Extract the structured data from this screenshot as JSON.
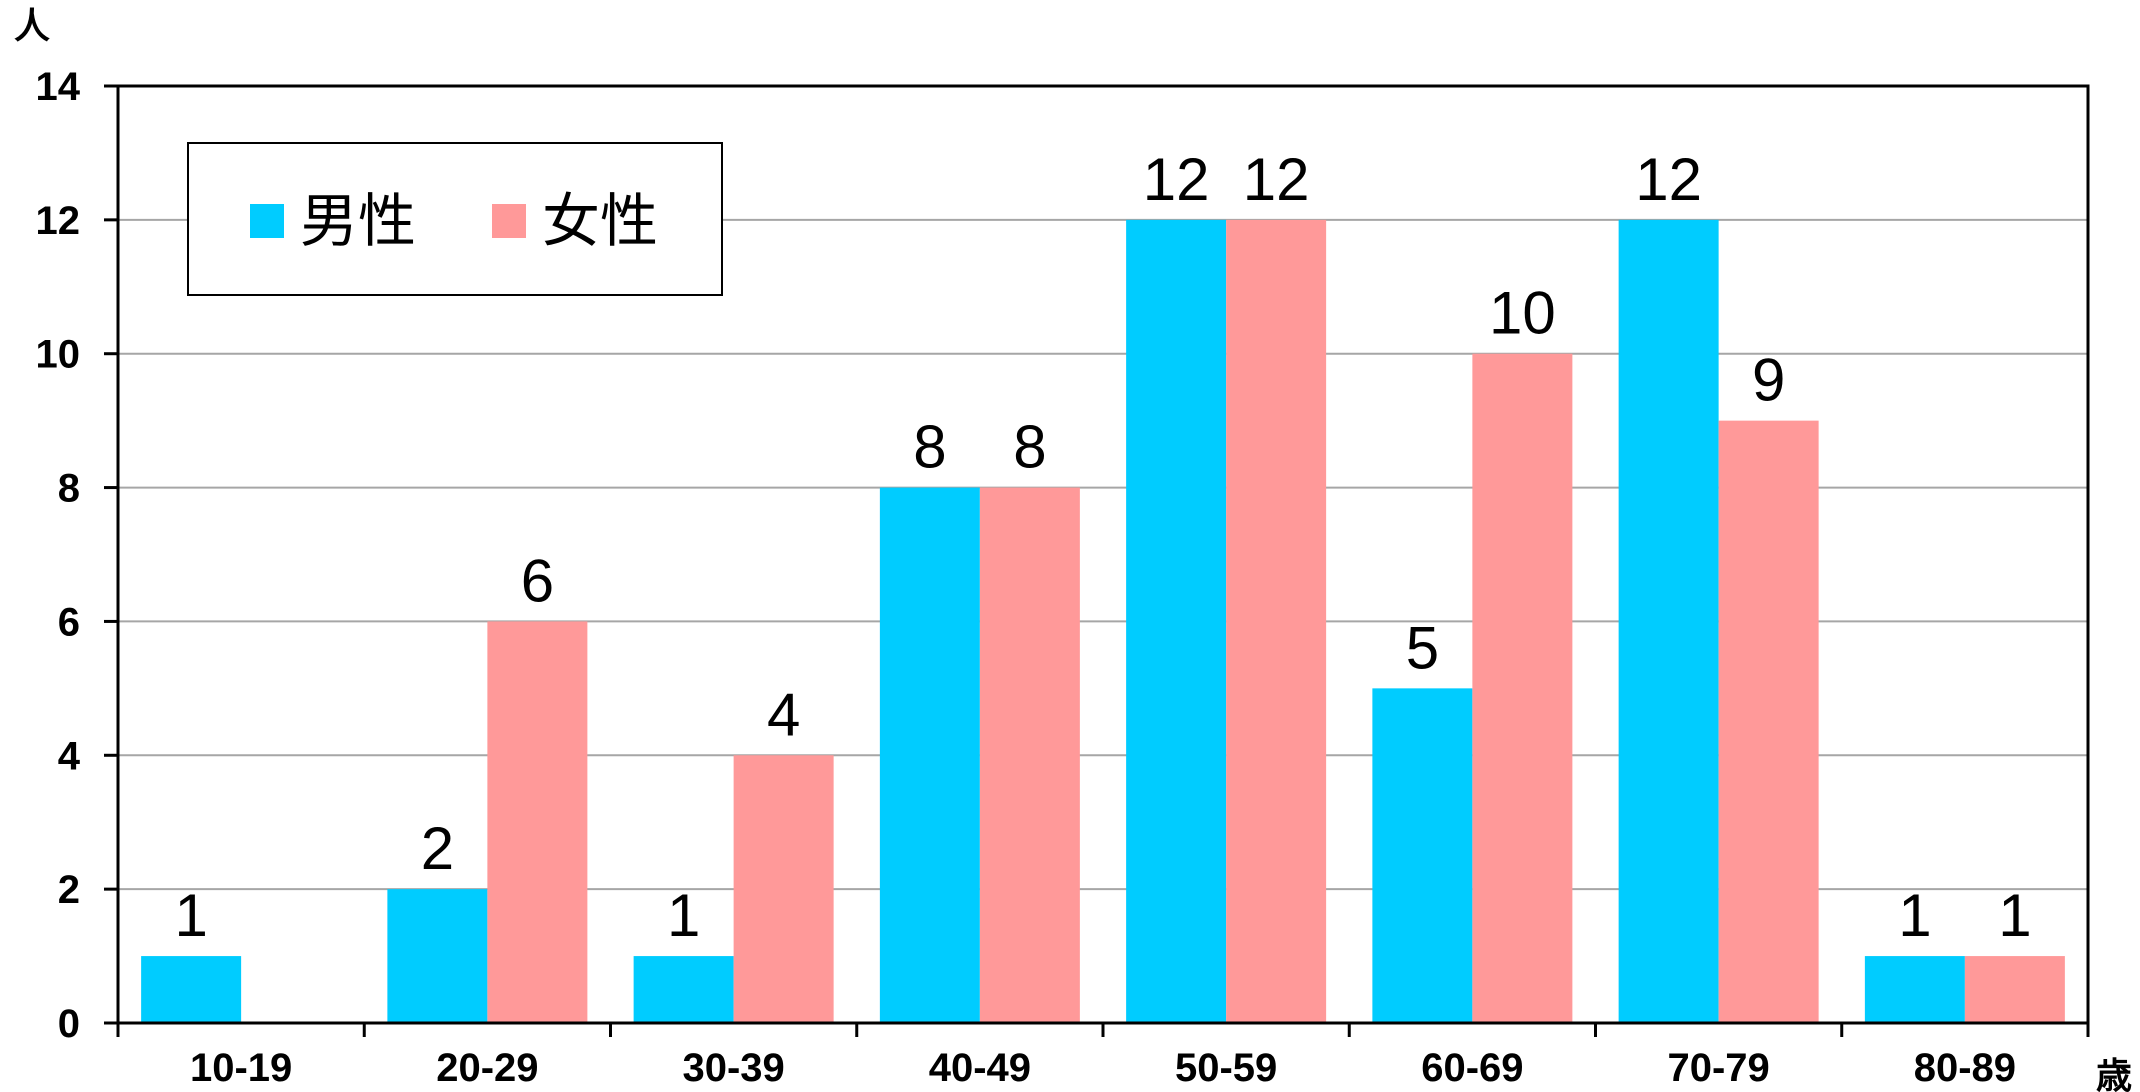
{
  "chart_data": {
    "type": "bar",
    "categories": [
      "10-19",
      "20-29",
      "30-39",
      "40-49",
      "50-59",
      "60-69",
      "70-79",
      "80-89"
    ],
    "series": [
      {
        "name": "男性",
        "color": "#00CCFF",
        "values": [
          1,
          2,
          1,
          8,
          12,
          5,
          12,
          1
        ]
      },
      {
        "name": "女性",
        "color": "#FF9999",
        "values": [
          0,
          6,
          4,
          8,
          12,
          10,
          9,
          1
        ]
      }
    ],
    "data_labels": [
      [
        "1",
        "2",
        "1",
        "8",
        "12",
        "5",
        "12",
        "1"
      ],
      [
        "",
        "6",
        "4",
        "8",
        "12",
        "10",
        "9",
        "1"
      ]
    ],
    "ylim": [
      0,
      14
    ],
    "yticks": [
      0,
      2,
      4,
      6,
      8,
      10,
      12,
      14
    ],
    "ylabel": "人",
    "xlabel": "歳",
    "grid": true,
    "legend_position": "top-left"
  }
}
